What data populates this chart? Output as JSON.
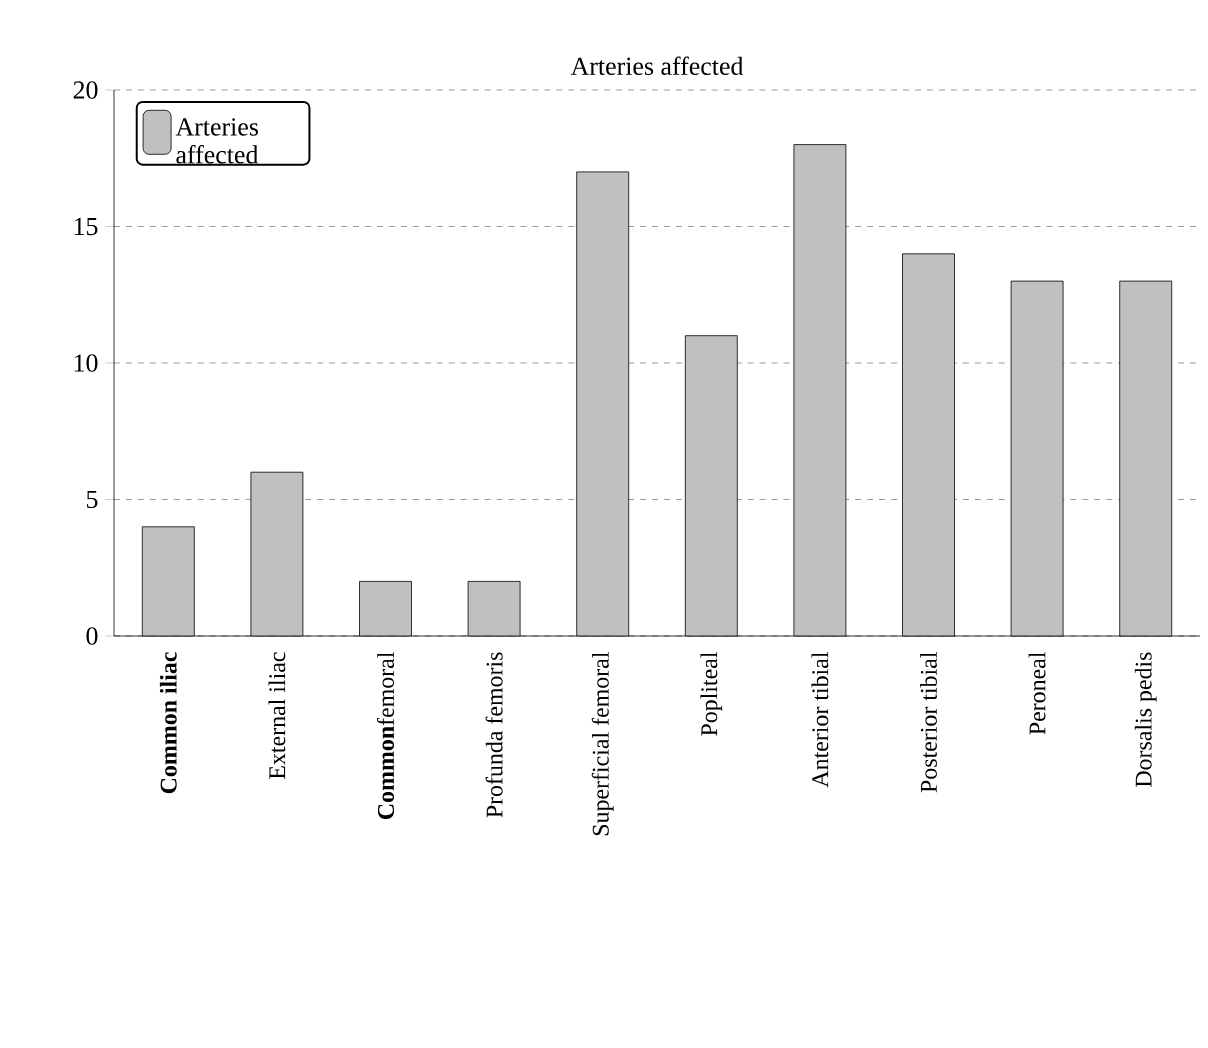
{
  "chart_data": {
    "type": "bar",
    "title": "Arteries affected",
    "categories": [
      "**Common iliac**",
      "External iliac",
      "**Common**femoral",
      "Profunda femoris",
      "Superficial femoral",
      "Popliteal",
      "Anterior tibial",
      "Posterior tibial",
      "Peroneal",
      "Dorsalis pedis"
    ],
    "series": [
      {
        "name": "Arteries affected",
        "color": "#c0c0c0",
        "values": [
          4,
          6,
          2,
          2,
          17,
          11,
          18,
          14,
          13,
          13
        ]
      }
    ],
    "ylim": [
      0,
      20
    ],
    "yticks": [
      0,
      5,
      10,
      15,
      20
    ],
    "grid": "y",
    "legend": "top left"
  }
}
